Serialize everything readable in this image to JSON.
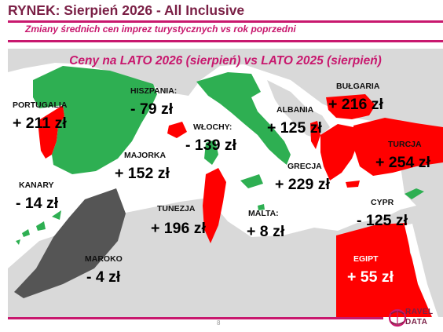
{
  "header": {
    "title": "RYNEK: Sierpień 2026 - All Inclusive",
    "subtitle": "Zmiany średnich cen imprez turystycznych vs rok poprzedni"
  },
  "map": {
    "title": "Ceny na LATO 2026 (sierpień) vs  LATO 2025 (sierpień)",
    "colors": {
      "increase": "#ff0000",
      "decrease": "#2eaf52",
      "small_change": "#555555",
      "land": "#d9d9d9",
      "sea": "#ffffff"
    },
    "countries": [
      {
        "label": "PORTUGALIA",
        "value": "+ 211 zł",
        "change": "increase"
      },
      {
        "label": "HISZPANIA:",
        "value": "- 79 zł",
        "change": "decrease"
      },
      {
        "label": "MAJORKA",
        "value": "+ 152 zł",
        "change": "increase"
      },
      {
        "label": "WŁOCHY:",
        "value": "- 139 zł",
        "change": "decrease"
      },
      {
        "label": "ALBANIA",
        "value": "+ 125 zł",
        "change": "increase"
      },
      {
        "label": "BUŁGARIA",
        "value": "+ 216 zł",
        "change": "increase"
      },
      {
        "label": "TURCJA",
        "value": "+ 254 zł",
        "change": "increase"
      },
      {
        "label": "GRECJA",
        "value": "+ 229 zł",
        "change": "increase"
      },
      {
        "label": "KANARY",
        "value": "- 14 zł",
        "change": "decrease"
      },
      {
        "label": "TUNEZJA",
        "value": "+ 196 zł",
        "change": "increase"
      },
      {
        "label": "MALTA:",
        "value": "+ 8 zł",
        "change": "increase"
      },
      {
        "label": "CYPR",
        "value": "- 125 zł",
        "change": "decrease"
      },
      {
        "label": "MAROKO",
        "value": "- 4 zł",
        "change": "small_change"
      },
      {
        "label": "EGIPT",
        "value": "+ 55 zł",
        "change": "increase"
      }
    ]
  },
  "footer": {
    "page_number": "8",
    "brand_line1": "RAVEL",
    "brand_line2": "DATA"
  }
}
